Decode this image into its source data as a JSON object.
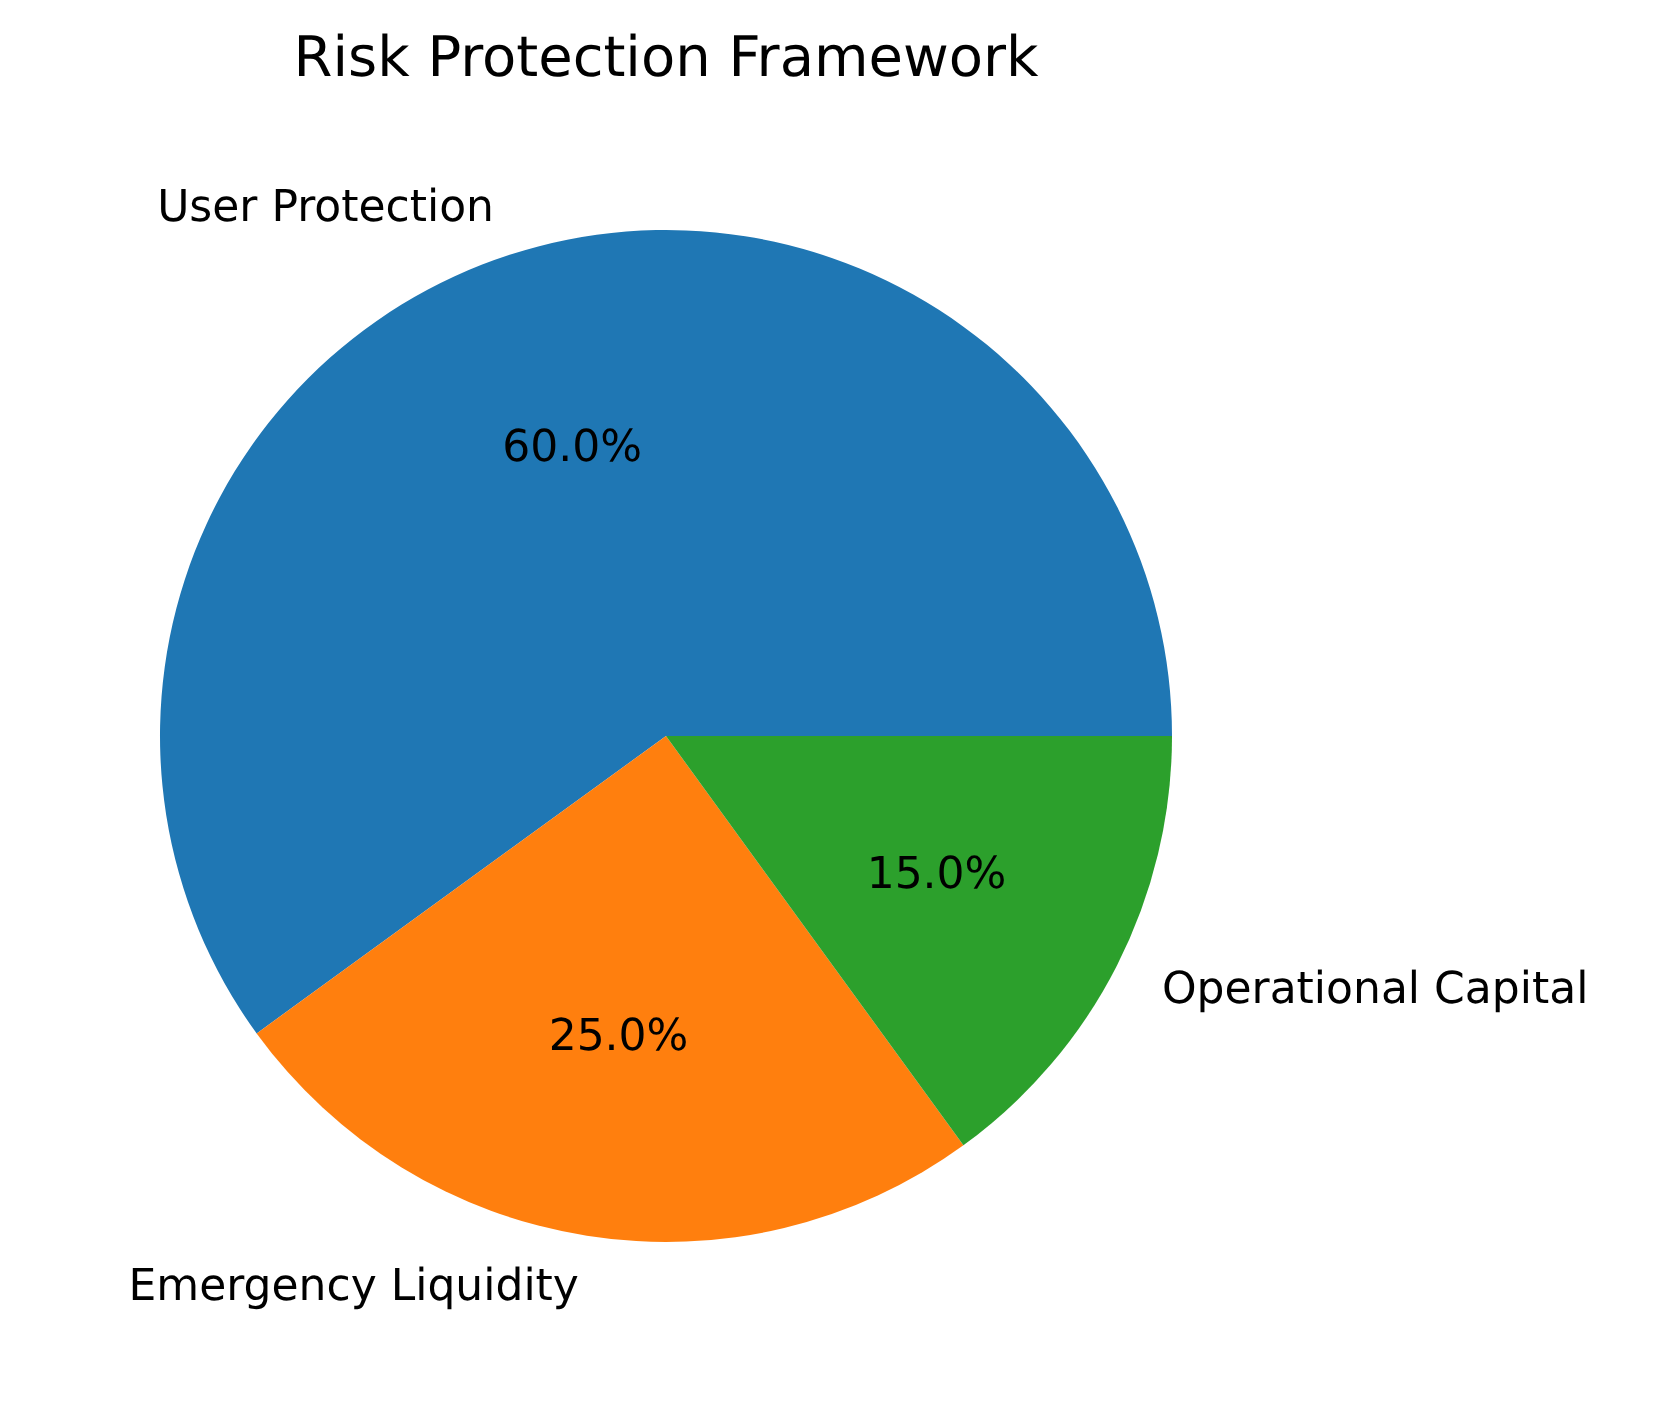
{
  "chart_data": {
    "type": "pie",
    "title": "Risk Protection Framework",
    "categories": [
      "User Protection",
      "Emergency Liquidity",
      "Operational Capital"
    ],
    "values": [
      60,
      25,
      15
    ],
    "colors": [
      "#1f77b4",
      "#ff7f0e",
      "#2ca02c"
    ],
    "value_labels": [
      "60.0%",
      "25.0%",
      "15.0%"
    ],
    "legend": false
  }
}
